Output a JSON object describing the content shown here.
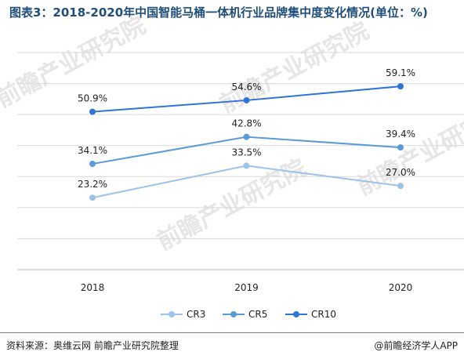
{
  "title": "图表3：2018-2020年中国智能马桶一体机行业品牌集中度变化情况(单位：%)",
  "footer": {
    "source": "资料来源：奥维云网 前瞻产业研究院整理",
    "brand": "@前瞻经济学人APP"
  },
  "watermark": {
    "text": "前瞻产业研究院"
  },
  "chart_data": {
    "type": "line",
    "title": "图表3：2018-2020年中国智能马桶一体机行业品牌集中度变化情况(单位：%)",
    "categories": [
      "2018",
      "2019",
      "2020"
    ],
    "series": [
      {
        "name": "CR3",
        "values": [
          23.2,
          33.5,
          27.0
        ],
        "labels": [
          "23.2%",
          "33.5%",
          "27.0%"
        ],
        "color": "#9dc3e6"
      },
      {
        "name": "CR5",
        "values": [
          34.1,
          42.8,
          39.4
        ],
        "labels": [
          "34.1%",
          "42.8%",
          "39.4%"
        ],
        "color": "#5b9bd5"
      },
      {
        "name": "CR10",
        "values": [
          50.9,
          54.6,
          59.1
        ],
        "labels": [
          "50.9%",
          "54.6%",
          "59.1%"
        ],
        "color": "#2e75d6"
      }
    ],
    "ylim": [
      0,
      70
    ],
    "grid": true,
    "legend": "bottom"
  }
}
